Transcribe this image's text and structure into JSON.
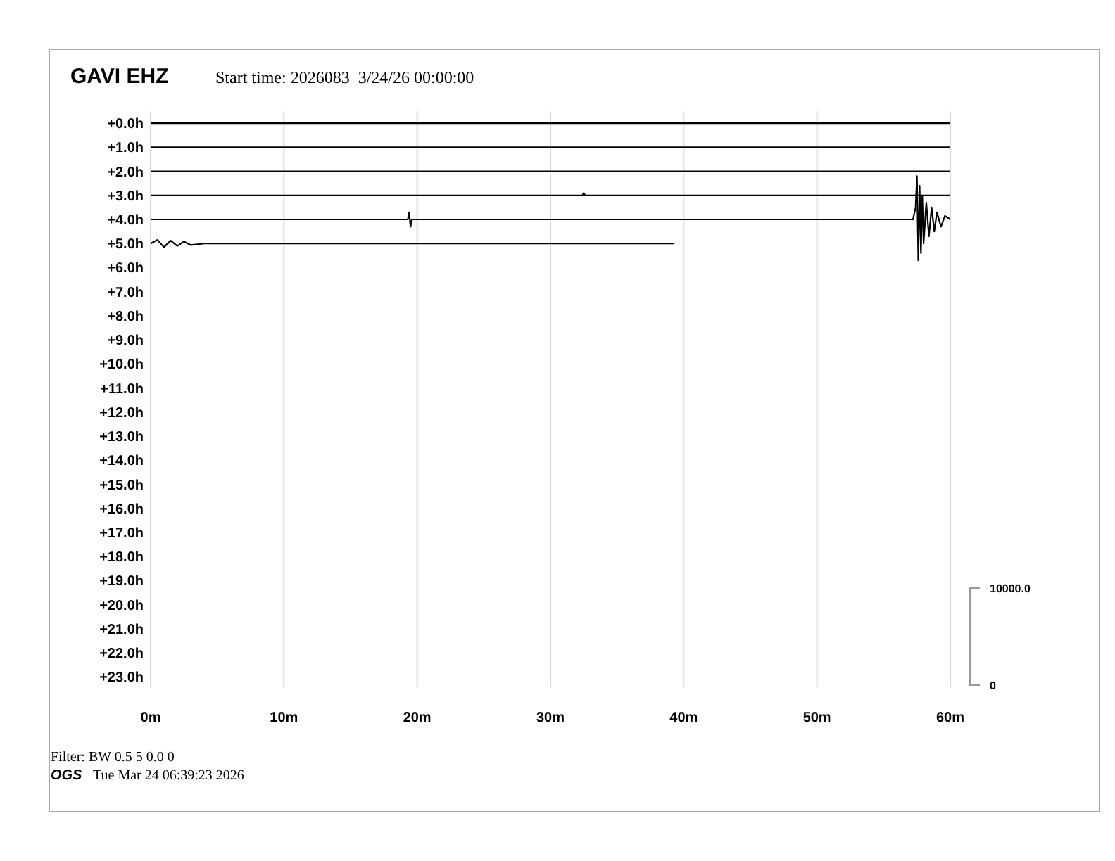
{
  "chart_data": {
    "type": "line",
    "title": "GAVI EHZ",
    "subtitle": "Start time: 2026083  3/24/26 00:00:00",
    "xlim": [
      0,
      60
    ],
    "xticks": [
      {
        "value": 0,
        "label": "0m"
      },
      {
        "value": 10,
        "label": "10m"
      },
      {
        "value": 20,
        "label": "20m"
      },
      {
        "value": 30,
        "label": "30m"
      },
      {
        "value": 40,
        "label": "40m"
      },
      {
        "value": 50,
        "label": "50m"
      },
      {
        "value": 60,
        "label": "60m"
      }
    ],
    "ylim": [
      23.4,
      -0.5
    ],
    "yticks": [
      {
        "value": 0,
        "label": "+0.0h"
      },
      {
        "value": 1,
        "label": "+1.0h"
      },
      {
        "value": 2,
        "label": "+2.0h"
      },
      {
        "value": 3,
        "label": "+3.0h"
      },
      {
        "value": 4,
        "label": "+4.0h"
      },
      {
        "value": 5,
        "label": "+5.0h"
      },
      {
        "value": 6,
        "label": "+6.0h"
      },
      {
        "value": 7,
        "label": "+7.0h"
      },
      {
        "value": 8,
        "label": "+8.0h"
      },
      {
        "value": 9,
        "label": "+9.0h"
      },
      {
        "value": 10,
        "label": "+10.0h"
      },
      {
        "value": 11,
        "label": "+11.0h"
      },
      {
        "value": 12,
        "label": "+12.0h"
      },
      {
        "value": 13,
        "label": "+13.0h"
      },
      {
        "value": 14,
        "label": "+14.0h"
      },
      {
        "value": 15,
        "label": "+15.0h"
      },
      {
        "value": 16,
        "label": "+16.0h"
      },
      {
        "value": 17,
        "label": "+17.0h"
      },
      {
        "value": 18,
        "label": "+18.0h"
      },
      {
        "value": 19,
        "label": "+19.0h"
      },
      {
        "value": 20,
        "label": "+20.0h"
      },
      {
        "value": 21,
        "label": "+21.0h"
      },
      {
        "value": 22,
        "label": "+22.0h"
      },
      {
        "value": 23,
        "label": "+23.0h"
      }
    ],
    "grid": "x",
    "marker": "none",
    "line_style": "solid",
    "series": [
      {
        "color": "#000000",
        "x": [
          0,
          60
        ],
        "values": [
          0,
          0
        ]
      },
      {
        "color": "#000000",
        "x": [
          0,
          60
        ],
        "values": [
          1,
          1
        ]
      },
      {
        "color": "#000000",
        "x": [
          0,
          60
        ],
        "values": [
          2,
          2
        ]
      },
      {
        "color": "#000000",
        "x": [
          0,
          32.4,
          32.5,
          32.6,
          60
        ],
        "values": [
          3,
          3,
          2.9,
          3,
          3
        ]
      },
      {
        "color": "#000000",
        "x": [
          0,
          19.3,
          19.4,
          19.5,
          19.6,
          57.2,
          57.4,
          57.5,
          57.6,
          57.7,
          57.8,
          57.9,
          58.0,
          58.2,
          58.4,
          58.6,
          58.8,
          59.0,
          59.3,
          59.6,
          60
        ],
        "values": [
          4,
          4,
          3.7,
          4.3,
          4,
          4,
          3.5,
          2.2,
          5.7,
          2.6,
          5.4,
          3.0,
          5.0,
          3.3,
          4.7,
          3.5,
          4.5,
          3.7,
          4.3,
          3.85,
          4
        ]
      },
      {
        "color": "#000000",
        "x": [
          0,
          0.5,
          1,
          1.5,
          2,
          2.5,
          3,
          4,
          39.3
        ],
        "values": [
          5,
          4.85,
          5.15,
          4.88,
          5.1,
          4.92,
          5.06,
          5,
          5
        ]
      }
    ],
    "annotations": [
      "10000.0",
      "0",
      "Filter: BW 0.5 5 0.0 0",
      "OGS",
      "Tue Mar 24 06:39:23 2026"
    ]
  }
}
